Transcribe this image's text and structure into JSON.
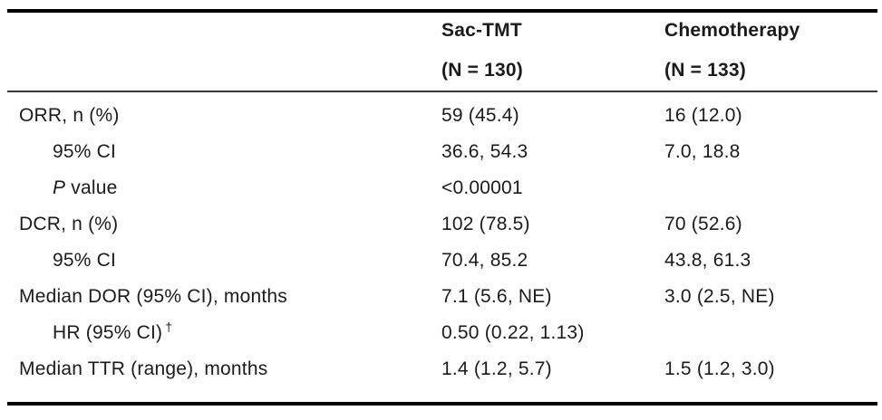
{
  "table": {
    "columns": [
      {
        "title": "Sac-TMT",
        "subtitle": "(N = 130)"
      },
      {
        "title": "Chemotherapy",
        "subtitle": "(N = 133)"
      }
    ],
    "rows": [
      {
        "label": "ORR, n (%)",
        "sac_tmt": "59 (45.4)",
        "chemotherapy": "16 (12.0)"
      },
      {
        "label": "95% CI",
        "sac_tmt": "36.6, 54.3",
        "chemotherapy": "7.0, 18.8"
      },
      {
        "label_italic": "P",
        "label": " value",
        "sac_tmt": "<0.00001",
        "chemotherapy": ""
      },
      {
        "label": "DCR, n (%)",
        "sac_tmt": "102 (78.5)",
        "chemotherapy": "70 (52.6)"
      },
      {
        "label": "95% CI",
        "sac_tmt": "70.4, 85.2",
        "chemotherapy": "43.8, 61.3"
      },
      {
        "label": "Median DOR (95% CI), months",
        "sac_tmt": "7.1 (5.6, NE)",
        "chemotherapy": "3.0 (2.5, NE)"
      },
      {
        "label": "HR (95% CI)",
        "label_sup": "†",
        "sac_tmt": "0.50 (0.22, 1.13)",
        "chemotherapy": ""
      },
      {
        "label": "Median TTR (range), months",
        "sac_tmt": "1.4 (1.2, 5.7)",
        "chemotherapy": "1.5 (1.2, 3.0)"
      }
    ],
    "colors": {
      "background": "#ffffff",
      "text": "#1b1b1b",
      "rule_heavy": "#000000",
      "rule_light": "#3a3a3a"
    }
  }
}
